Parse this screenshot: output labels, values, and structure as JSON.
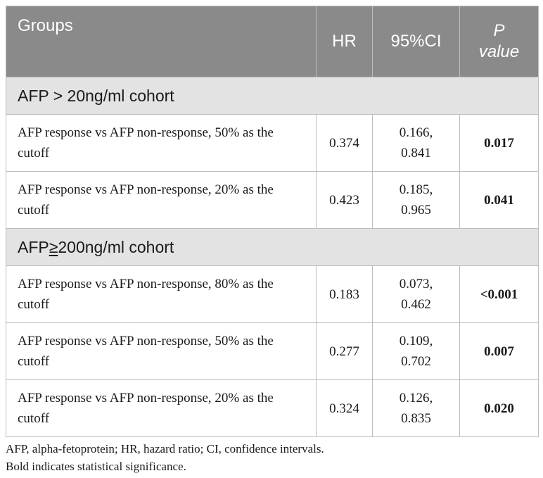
{
  "header": {
    "groups": "Groups",
    "hr": "HR",
    "ci": "95%CI",
    "p_line1": "P",
    "p_line2": "value"
  },
  "sections": [
    {
      "cohort_label": "AFP > 20ng/ml cohort",
      "rows": [
        {
          "comparison": "AFP response vs AFP non-response, 50% as the cutoff",
          "hr": "0.374",
          "ci_low": "0.166,",
          "ci_high": "0.841",
          "p": "0.017"
        },
        {
          "comparison": "AFP response vs AFP non-response, 20% as the cutoff",
          "hr": "0.423",
          "ci_low": "0.185,",
          "ci_high": "0.965",
          "p": "0.041"
        }
      ]
    },
    {
      "cohort_label_prefix": "AFP",
      "cohort_label_symbol": "≥",
      "cohort_label_suffix": "200ng/ml cohort",
      "rows": [
        {
          "comparison": "AFP response vs AFP non-response, 80% as the cutoff",
          "hr": "0.183",
          "ci_low": "0.073,",
          "ci_high": "0.462",
          "p": "<0.001"
        },
        {
          "comparison": "AFP response vs AFP non-response, 50% as the cutoff",
          "hr": "0.277",
          "ci_low": "0.109,",
          "ci_high": "0.702",
          "p": "0.007"
        },
        {
          "comparison": "AFP response vs AFP non-response, 20% as the cutoff",
          "hr": "0.324",
          "ci_low": "0.126,",
          "ci_high": "0.835",
          "p": "0.020"
        }
      ]
    }
  ],
  "footnotes": {
    "abbreviations": "AFP, alpha-fetoprotein; HR, hazard ratio; CI, confidence intervals.",
    "bold_note": "Bold indicates statistical significance."
  },
  "colors": {
    "header_bg": "#8a8a8a",
    "cohort_bg": "#e3e3e3",
    "border": "#bdbdbd"
  }
}
